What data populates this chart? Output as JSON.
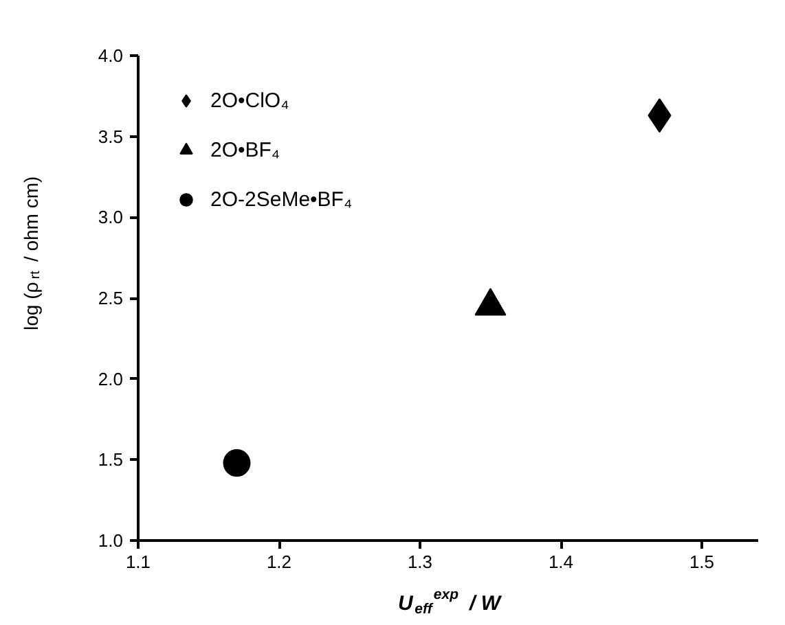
{
  "chart_data": {
    "type": "scatter",
    "xlabel": "U$_{eff}$$^{exp}$ / W",
    "ylabel": "log (ρ$_{rt}$ / ohm cm)",
    "xlim": [
      1.1,
      1.54
    ],
    "ylim": [
      1.0,
      4.0
    ],
    "xticks": [
      1.1,
      1.2,
      1.3,
      1.4,
      1.5
    ],
    "yticks": [
      {
        "value": 1.0,
        "label": "1.0"
      },
      1.5,
      {
        "value": 2.0,
        "label": "2.0"
      },
      2.5,
      {
        "value": 3.0,
        "label": "3.0"
      },
      3.5,
      {
        "value": 4.0,
        "label": "4.0"
      }
    ],
    "grid": false,
    "legend": "top left",
    "series": [
      {
        "name": "2O•ClO₄",
        "color": "#000000",
        "marker": "diamond",
        "x": [
          1.47
        ],
        "values": [
          3.63
        ]
      },
      {
        "name": "2O•BF₄",
        "color": "#000000",
        "marker": "triangle",
        "x": [
          1.35
        ],
        "values": [
          2.45
        ]
      },
      {
        "name": "2O-2SeMe•BF₄",
        "color": "#000000",
        "marker": "circle",
        "x": [
          1.17
        ],
        "values": [
          1.48
        ]
      }
    ]
  }
}
